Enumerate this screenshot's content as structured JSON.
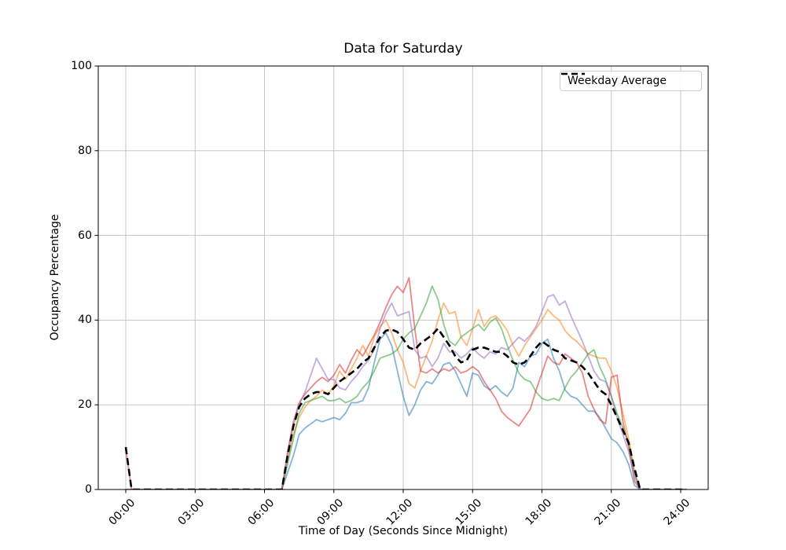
{
  "figure": {
    "title": "Data for Saturday",
    "xlabel": "Time of Day (Seconds Since Midnight)",
    "ylabel": "Occupancy Percentage",
    "legend": {
      "label": "Weekday Average"
    }
  },
  "chart_data": {
    "type": "line",
    "title": "Data for Saturday",
    "xlabel": "Time of Day (Seconds Since Midnight)",
    "ylabel": "Occupancy Percentage",
    "grid": true,
    "legend_position": "upper right",
    "ylim": [
      0,
      100
    ],
    "xlim_hours": [
      -1.19,
      25.19
    ],
    "yticks": [
      0,
      20,
      40,
      60,
      80,
      100
    ],
    "xticks": {
      "hours": [
        0,
        3,
        6,
        9,
        12,
        15,
        18,
        21,
        24
      ],
      "labels": [
        "00:00",
        "03:00",
        "06:00",
        "09:00",
        "12:00",
        "15:00",
        "18:00",
        "21:00",
        "24:00"
      ]
    },
    "grid_color": "#c0c0c0",
    "x_hours": [
      0,
      0.25,
      1,
      2,
      3,
      4,
      5,
      6,
      6.5,
      6.75,
      7,
      7.25,
      7.5,
      7.75,
      8,
      8.25,
      8.5,
      8.75,
      9,
      9.25,
      9.5,
      9.75,
      10,
      10.25,
      10.5,
      10.75,
      11,
      11.25,
      11.5,
      11.75,
      12,
      12.25,
      12.5,
      12.75,
      13,
      13.25,
      13.5,
      13.75,
      14,
      14.25,
      14.5,
      14.75,
      15,
      15.25,
      15.5,
      15.75,
      16,
      16.25,
      16.5,
      16.75,
      17,
      17.25,
      17.5,
      17.75,
      18,
      18.25,
      18.5,
      18.75,
      19,
      19.25,
      19.5,
      19.75,
      20,
      20.25,
      20.5,
      20.75,
      21,
      21.25,
      21.5,
      21.75,
      22,
      22.25,
      22.5,
      23,
      23.5,
      24,
      24.25
    ],
    "series": [
      {
        "name": "series_1",
        "color": "#1f77b4",
        "alpha": 0.55,
        "style": "solid",
        "width": 1.8,
        "values": [
          0,
          0,
          0,
          0,
          0,
          0,
          0,
          0,
          0,
          0,
          4,
          8,
          13,
          14.5,
          15.5,
          16.5,
          16,
          16.5,
          17,
          16.5,
          18,
          20.5,
          20.5,
          21,
          24,
          30,
          35.5,
          37,
          34,
          28,
          22,
          17.5,
          20,
          23.5,
          25.5,
          25,
          27,
          29.5,
          30,
          28,
          25,
          22,
          27.5,
          27,
          24.5,
          23.5,
          24.5,
          23,
          22,
          24,
          30,
          29,
          31.5,
          32,
          34.5,
          35.5,
          31,
          28,
          23.5,
          22,
          21.5,
          20,
          18.5,
          18.5,
          17,
          14.5,
          12,
          11,
          9,
          6,
          1,
          0,
          0,
          0,
          0,
          0,
          0
        ]
      },
      {
        "name": "series_2",
        "color": "#ff7f0e",
        "alpha": 0.55,
        "style": "solid",
        "width": 1.8,
        "values": [
          0,
          0,
          0,
          0,
          0,
          0,
          0,
          0,
          0,
          0,
          7,
          13,
          17,
          19.5,
          21,
          22,
          23.5,
          22.5,
          24.5,
          28,
          26,
          28.5,
          31,
          34,
          31.5,
          36,
          38.5,
          40,
          37,
          33,
          30,
          25,
          24,
          28,
          31.5,
          35,
          40,
          44,
          41.5,
          42,
          36,
          34,
          38,
          42.5,
          38.5,
          40.5,
          41,
          39.5,
          37.5,
          34,
          31.5,
          34,
          36,
          38,
          40,
          42.5,
          41,
          40,
          37.5,
          36,
          35,
          33.5,
          32,
          31.5,
          31,
          31,
          28,
          24,
          18,
          12,
          4,
          0,
          0,
          0,
          0,
          0,
          0
        ]
      },
      {
        "name": "series_3",
        "color": "#2ca02c",
        "alpha": 0.55,
        "style": "solid",
        "width": 1.8,
        "values": [
          0,
          0,
          0,
          0,
          0,
          0,
          0,
          0,
          0,
          0,
          6,
          12,
          18,
          20.5,
          21,
          21.5,
          22,
          21,
          21,
          21.5,
          20.5,
          21,
          22,
          24,
          25.5,
          28,
          31,
          31.5,
          32,
          33,
          35.5,
          37,
          38,
          41,
          44,
          48,
          45,
          39,
          35,
          34,
          36,
          37,
          38,
          39,
          37.5,
          39.5,
          40.5,
          38,
          34,
          30.5,
          27.5,
          26,
          25.5,
          23,
          21.5,
          21,
          21.5,
          21,
          24,
          26.5,
          28,
          30,
          32,
          33,
          29,
          26,
          22,
          18,
          14.5,
          11,
          4,
          0,
          0,
          0,
          0,
          0,
          0
        ]
      },
      {
        "name": "series_4",
        "color": "#d62728",
        "alpha": 0.55,
        "style": "solid",
        "width": 1.8,
        "values": [
          9.5,
          0,
          0,
          0,
          0,
          0,
          0,
          0,
          0,
          0,
          9,
          16,
          20.5,
          22.5,
          24,
          25.5,
          26.5,
          25.5,
          27,
          29.5,
          27.5,
          30.5,
          33,
          31.5,
          34,
          36.5,
          39.5,
          43,
          46,
          48,
          46.5,
          50,
          38,
          28,
          27.5,
          28.5,
          27.5,
          28.5,
          28,
          29,
          27.5,
          28,
          29,
          28,
          25.5,
          23.5,
          21.5,
          18.5,
          17,
          16,
          15,
          17,
          19,
          23.5,
          27.5,
          31.5,
          30,
          29.5,
          32,
          31,
          30,
          27.5,
          22,
          19,
          16.5,
          15.5,
          26.5,
          27,
          16,
          10,
          2,
          0,
          0,
          0,
          0,
          0,
          0
        ]
      },
      {
        "name": "series_5",
        "color": "#9467bd",
        "alpha": 0.55,
        "style": "solid",
        "width": 1.8,
        "values": [
          0,
          0,
          0,
          0,
          0,
          0,
          0,
          0,
          0,
          0,
          8,
          15,
          20,
          23,
          27,
          31,
          28.5,
          26,
          26,
          24,
          23.5,
          25.5,
          27,
          29,
          30.5,
          33,
          38,
          41.5,
          44,
          41,
          41.5,
          42,
          33,
          31,
          31.5,
          29,
          31,
          34.5,
          32.5,
          32.5,
          31,
          32,
          33.5,
          32,
          31,
          32.5,
          32,
          33.5,
          33,
          34.5,
          36,
          35,
          36.5,
          38.5,
          42,
          45.5,
          46,
          43.5,
          44.5,
          41,
          38,
          35,
          31.5,
          28,
          26,
          25.5,
          22,
          17,
          13,
          9,
          3,
          0,
          0,
          0,
          0,
          0,
          0
        ]
      },
      {
        "name": "weekday_average",
        "label": "Weekday Average",
        "color": "#000000",
        "alpha": 1,
        "style": "dashed",
        "width": 2.6,
        "values": [
          10,
          0,
          0,
          0,
          0,
          0,
          0,
          0,
          0,
          0,
          8,
          15,
          19.5,
          21.5,
          22.5,
          23,
          23,
          22.5,
          24,
          25.5,
          26.5,
          27.5,
          28.5,
          30,
          31,
          33.5,
          36,
          37.5,
          37.8,
          37.2,
          35.5,
          33.5,
          33,
          34.5,
          35.5,
          36.5,
          38,
          36,
          34,
          31.5,
          30,
          30.5,
          33,
          33.5,
          33.5,
          33,
          32.5,
          32.5,
          31.5,
          30,
          29.5,
          30,
          31.5,
          33.5,
          35,
          34,
          33,
          32.5,
          31,
          30.5,
          30,
          29,
          27.5,
          25.5,
          23.5,
          22.5,
          20,
          17,
          14,
          11,
          5,
          0,
          0,
          0,
          0,
          0,
          0
        ]
      }
    ]
  }
}
